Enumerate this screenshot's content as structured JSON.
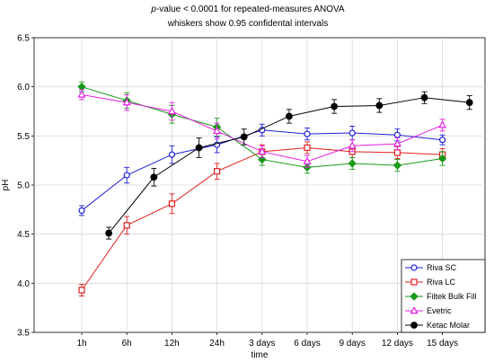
{
  "chart_data": {
    "type": "line",
    "title": "p-value < 0.0001 for repeated-measures ANOVA",
    "title_pvalue": "p",
    "title_rest": "-value < 0.0001 for repeated-measures ANOVA",
    "subtitle": "whiskers show 0.95 confidental intervals",
    "xlabel": "time",
    "ylabel": "pH",
    "ylim": [
      3.5,
      6.5
    ],
    "yticks": [
      "3.5",
      "4.0",
      "4.5",
      "5.0",
      "5.5",
      "6.0",
      "6.5"
    ],
    "categories": [
      "1h",
      "6h",
      "12h",
      "24h",
      "3 days",
      "6 days",
      "9 days",
      "12 days",
      "15 days"
    ],
    "grid": true,
    "legend_position": "bottom-right",
    "series": [
      {
        "name": "Riva SC",
        "color": "#1f1fd6",
        "marker": "circle-open",
        "values": [
          4.74,
          5.1,
          5.31,
          5.41,
          5.56,
          5.52,
          5.53,
          5.51,
          5.46
        ],
        "errors": [
          0.05,
          0.08,
          0.09,
          0.08,
          0.06,
          0.06,
          0.07,
          0.06,
          0.05
        ]
      },
      {
        "name": "Riva LC",
        "color": "#e02020",
        "marker": "square-open",
        "values": [
          3.93,
          4.59,
          4.81,
          5.14,
          5.34,
          5.38,
          5.34,
          5.33,
          5.31
        ],
        "errors": [
          0.06,
          0.09,
          0.1,
          0.08,
          0.07,
          0.06,
          0.06,
          0.06,
          0.06
        ]
      },
      {
        "name": "Filtek Bulk Fill",
        "color": "#1a9a1a",
        "marker": "diamond",
        "values": [
          6.0,
          5.86,
          5.72,
          5.59,
          5.26,
          5.18,
          5.22,
          5.2,
          5.27
        ],
        "errors": [
          0.05,
          0.08,
          0.09,
          0.09,
          0.06,
          0.06,
          0.06,
          0.06,
          0.07
        ]
      },
      {
        "name": "Evetric",
        "color": "#e020e0",
        "marker": "triangle-open",
        "values": [
          5.92,
          5.84,
          5.75,
          5.55,
          5.34,
          5.24,
          5.4,
          5.42,
          5.61
        ],
        "errors": [
          0.05,
          0.08,
          0.09,
          0.08,
          0.06,
          0.06,
          0.06,
          0.06,
          0.06
        ]
      },
      {
        "name": "Ketac Molar",
        "color": "#000000",
        "marker": "circle-filled",
        "offset": 0.6,
        "values": [
          4.51,
          5.08,
          5.38,
          5.49,
          5.7,
          5.8,
          5.81,
          5.89,
          5.84
        ],
        "errors": [
          0.06,
          0.09,
          0.1,
          0.08,
          0.07,
          0.07,
          0.07,
          0.06,
          0.07
        ]
      }
    ]
  }
}
